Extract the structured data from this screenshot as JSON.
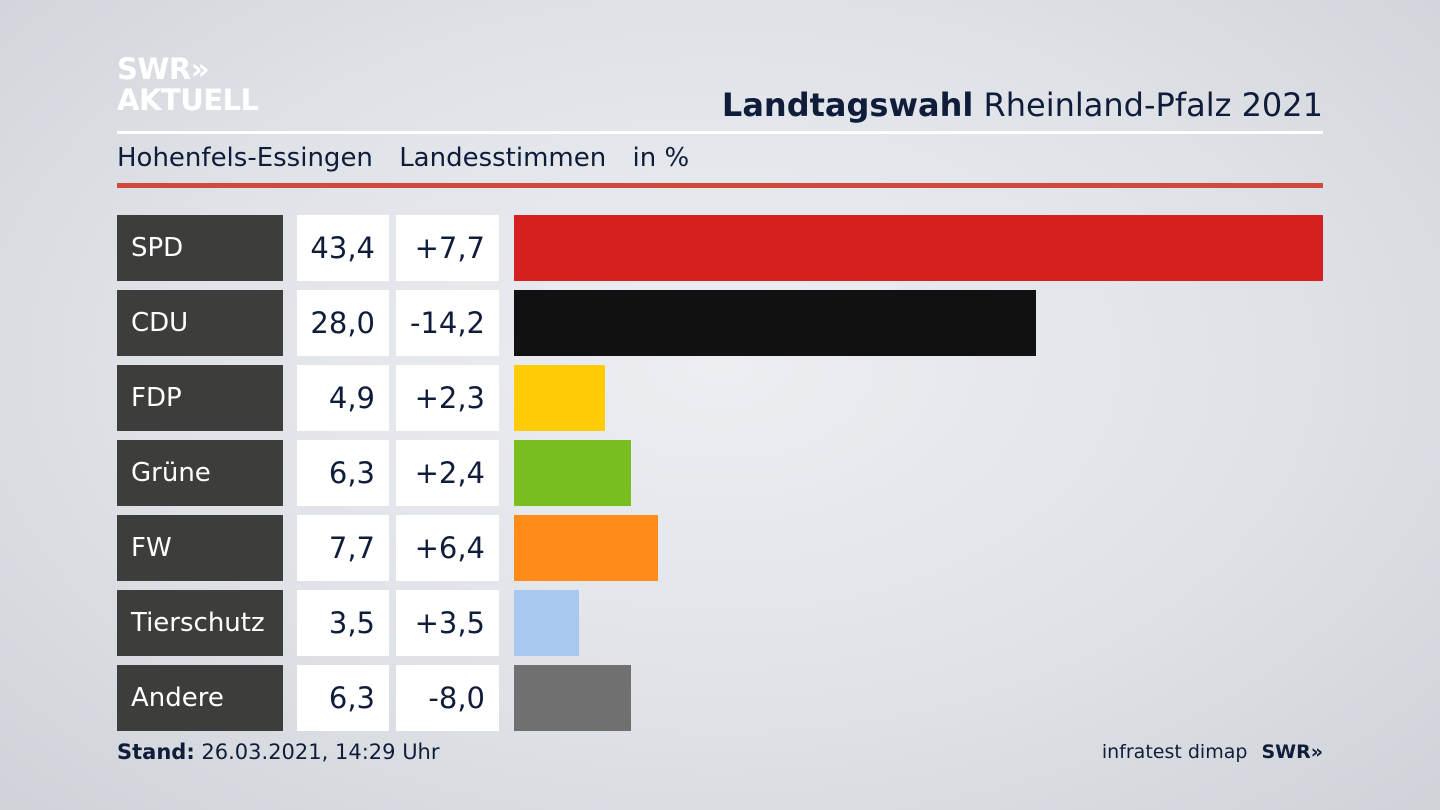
{
  "header": {
    "logo_line1": "SWR»",
    "logo_line2": "AKTUELL",
    "title_bold": "Landtagswahl",
    "title_rest": "Rheinland-Pfalz 2021"
  },
  "subtitle": {
    "municipality": "Hohenfels-Essingen",
    "vote_type": "Landesstimmen",
    "unit": "in %"
  },
  "chart_data": {
    "type": "bar",
    "orientation": "horizontal",
    "categories": [
      "SPD",
      "CDU",
      "FDP",
      "Grüne",
      "FW",
      "Tierschutz",
      "Andere"
    ],
    "series": [
      {
        "name": "Landesstimmen in %",
        "values": [
          43.4,
          28.0,
          4.9,
          6.3,
          7.7,
          3.5,
          6.3
        ]
      }
    ],
    "value_labels": [
      "43,4",
      "28,0",
      "4,9",
      "6,3",
      "7,7",
      "3,5",
      "6,3"
    ],
    "change": [
      7.7,
      -14.2,
      2.3,
      2.4,
      6.4,
      3.5,
      -8.0
    ],
    "change_labels": [
      "+7,7",
      "-14,2",
      "+2,3",
      "+2,4",
      "+6,4",
      "+3,5",
      "-8,0"
    ],
    "colors": [
      "#d61f1f",
      "#111111",
      "#ffcc05",
      "#78be1e",
      "#ff8c1a",
      "#a8c8f0",
      "#707070"
    ],
    "xlim": [
      0,
      43.4
    ],
    "grid": false,
    "legend": "none"
  },
  "footer": {
    "stand_label": "Stand:",
    "stand_value": "26.03.2021, 14:29 Uhr",
    "source": "infratest dimap",
    "brand": "SWR»"
  }
}
